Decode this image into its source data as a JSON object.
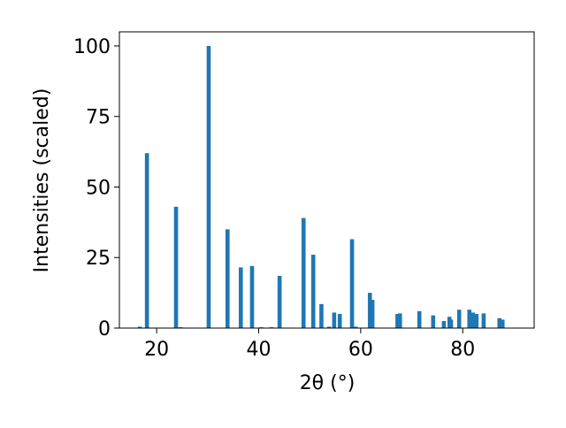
{
  "chart_data": {
    "type": "bar",
    "x_label": "2θ (°)",
    "y_label": "Intensities (scaled)",
    "x": [
      16.7,
      18.1,
      23.8,
      24.7,
      30.2,
      33.9,
      36.5,
      38.7,
      40.5,
      42.5,
      44.1,
      48.8,
      50.7,
      52.3,
      53.8,
      54.8,
      55.9,
      58.3,
      59.0,
      61.8,
      62.3,
      67.2,
      67.7,
      71.5,
      74.2,
      76.3,
      77.4,
      77.7,
      79.3,
      81.3,
      82.0,
      82.7,
      84.1,
      87.2,
      87.8
    ],
    "values": [
      0.5,
      62,
      43,
      0.3,
      100,
      35,
      21.5,
      22,
      0.3,
      0.3,
      18.5,
      39,
      26,
      8.5,
      0.5,
      5.5,
      5,
      31.5,
      0.5,
      12.5,
      10,
      5,
      5.2,
      6,
      4.5,
      2.5,
      4,
      3,
      6.5,
      6.5,
      5.5,
      5,
      5.2,
      3.5,
      3
    ],
    "color": "#1f77b4",
    "xlim": [
      12.7,
      94.0
    ],
    "xticks": [
      20,
      40,
      60,
      80
    ],
    "ylim": [
      0,
      105
    ],
    "yticks": [
      0,
      25,
      50,
      75,
      100
    ]
  }
}
